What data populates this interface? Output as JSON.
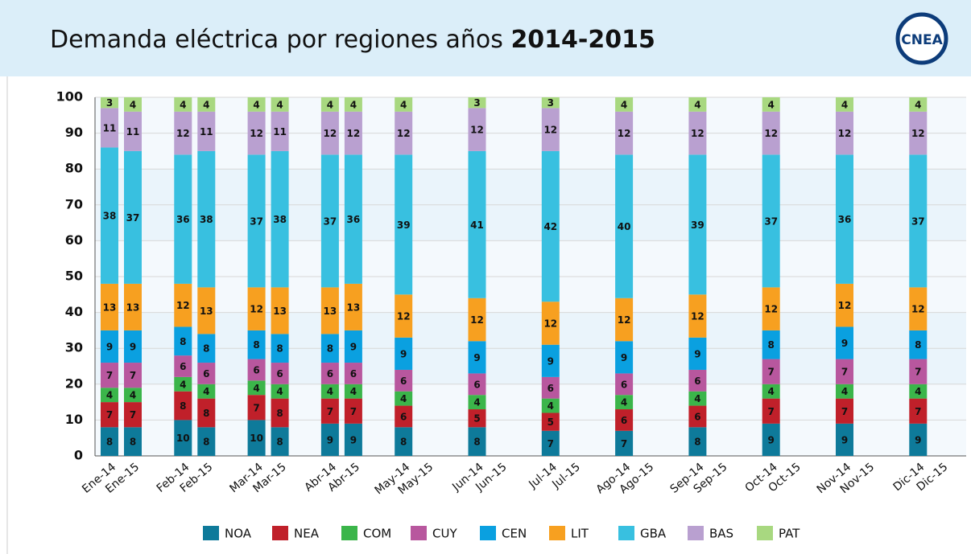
{
  "chart_data": {
    "type": "stacked_bar",
    "title": "Demanda eléctrica por regiones años",
    "title_emphasis": "2014-2015",
    "logo": "CNEA",
    "categories": [
      "Ene-14",
      "Ene-15",
      "Feb-14",
      "Feb-15",
      "Mar-14",
      "Mar-15",
      "Abr-14",
      "Abr-15",
      "May-14",
      "May-15",
      "Jun-14",
      "Jun-15",
      "Jul-14",
      "Jul-15",
      "Ago-14",
      "Ago-15",
      "Sep-14",
      "Sep-15",
      "Oct-14",
      "Oct-15",
      "Nov-14",
      "Nov-15",
      "Dic-14",
      "Dic-15"
    ],
    "series": [
      {
        "name": "NOA",
        "color": "#0e7a9a",
        "values": [
          8,
          8,
          10,
          8,
          10,
          8,
          9,
          9,
          8,
          null,
          8,
          null,
          7,
          null,
          7,
          null,
          8,
          null,
          9,
          null,
          9,
          null,
          9,
          null
        ]
      },
      {
        "name": "NEA",
        "color": "#c0202a",
        "values": [
          7,
          7,
          8,
          8,
          7,
          8,
          7,
          7,
          6,
          null,
          5,
          null,
          5,
          null,
          6,
          null,
          6,
          null,
          7,
          null,
          7,
          null,
          7,
          null
        ]
      },
      {
        "name": "COM",
        "color": "#3bb54a",
        "values": [
          4,
          4,
          4,
          4,
          4,
          4,
          4,
          4,
          4,
          null,
          4,
          null,
          4,
          null,
          4,
          null,
          4,
          null,
          4,
          null,
          4,
          null,
          4,
          null
        ]
      },
      {
        "name": "CUY",
        "color": "#b8579e",
        "values": [
          7,
          7,
          6,
          6,
          6,
          6,
          6,
          6,
          6,
          null,
          6,
          null,
          6,
          null,
          6,
          null,
          6,
          null,
          7,
          null,
          7,
          null,
          7,
          null
        ]
      },
      {
        "name": "CEN",
        "color": "#0aa0e0",
        "values": [
          9,
          9,
          8,
          8,
          8,
          8,
          8,
          9,
          9,
          null,
          9,
          null,
          9,
          null,
          9,
          null,
          9,
          null,
          8,
          null,
          9,
          null,
          8,
          null
        ]
      },
      {
        "name": "LIT",
        "color": "#f7a020",
        "values": [
          13,
          13,
          12,
          13,
          12,
          13,
          13,
          13,
          12,
          null,
          12,
          null,
          12,
          null,
          12,
          null,
          12,
          null,
          12,
          null,
          12,
          null,
          12,
          null
        ]
      },
      {
        "name": "GBA",
        "color": "#38c0e0",
        "values": [
          38,
          37,
          36,
          38,
          37,
          38,
          37,
          36,
          39,
          null,
          41,
          null,
          42,
          null,
          40,
          null,
          39,
          null,
          37,
          null,
          36,
          null,
          37,
          null
        ]
      },
      {
        "name": "BAS",
        "color": "#b9a0d0",
        "values": [
          11,
          11,
          12,
          11,
          12,
          11,
          12,
          12,
          12,
          null,
          12,
          null,
          12,
          null,
          12,
          null,
          12,
          null,
          12,
          null,
          12,
          null,
          12,
          null
        ]
      },
      {
        "name": "PAT",
        "color": "#a8d880",
        "values": [
          3,
          4,
          4,
          4,
          4,
          4,
          4,
          4,
          4,
          null,
          3,
          null,
          3,
          null,
          4,
          null,
          4,
          null,
          4,
          null,
          4,
          null,
          4,
          null
        ]
      }
    ],
    "ylim": [
      0,
      100
    ],
    "yticks": [
      0,
      10,
      20,
      30,
      40,
      50,
      60,
      70,
      80,
      90,
      100
    ],
    "grid": true
  }
}
